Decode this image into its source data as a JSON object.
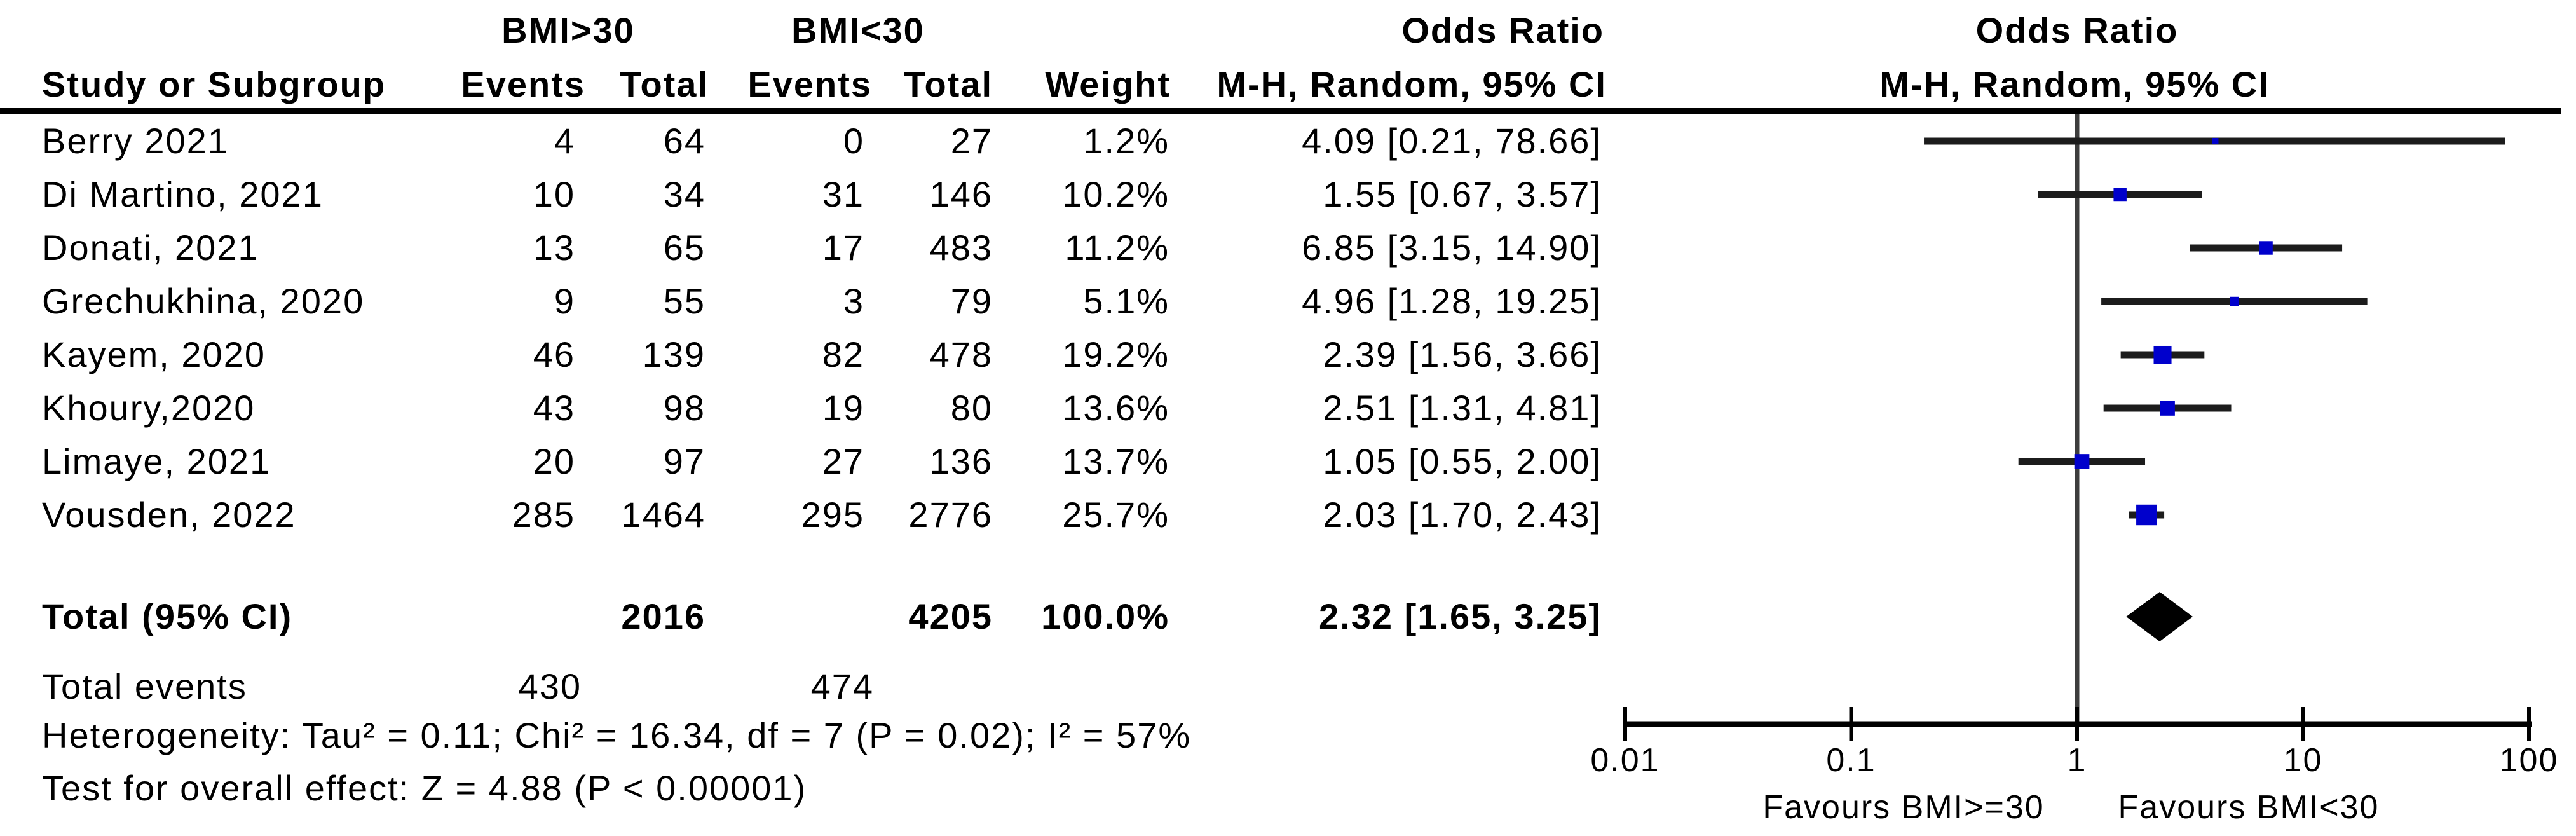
{
  "header": {
    "group1": "BMI>30",
    "group2": "BMI<30",
    "study_col": "Study or Subgroup",
    "events_col_1": "Events",
    "total_col_1": "Total",
    "events_col_2": "Events",
    "total_col_2": "Total",
    "weight_col": "Weight",
    "or_col_title": "Odds Ratio",
    "or_col_sub": "M-H, Random, 95% CI",
    "plot_title": "Odds Ratio",
    "plot_sub": "M-H, Random, 95% CI"
  },
  "chart_data": {
    "type": "forest",
    "effect_measure": "Odds Ratio",
    "method": "M-H, Random, 95% CI",
    "x_scale": "log",
    "axis_range": [
      0.01,
      100
    ],
    "axis_ticks": [
      0.01,
      0.1,
      1,
      10,
      100
    ],
    "favours_left": "Favours BMI>=30",
    "favours_right": "Favours BMI<30",
    "marker_color": "#0000CC",
    "diamond_color": "#000000",
    "studies": [
      {
        "name": "Berry 2021",
        "events1": 4,
        "total1": 64,
        "events2": 0,
        "total2": 27,
        "weight": "1.2%",
        "weight_value": 1.2,
        "or": 4.09,
        "ci_low": 0.21,
        "ci_high": 78.66,
        "or_ci_text": "4.09 [0.21, 78.66]"
      },
      {
        "name": "Di Martino, 2021",
        "events1": 10,
        "total1": 34,
        "events2": 31,
        "total2": 146,
        "weight": "10.2%",
        "weight_value": 10.2,
        "or": 1.55,
        "ci_low": 0.67,
        "ci_high": 3.57,
        "or_ci_text": "1.55 [0.67, 3.57]"
      },
      {
        "name": "Donati, 2021",
        "events1": 13,
        "total1": 65,
        "events2": 17,
        "total2": 483,
        "weight": "11.2%",
        "weight_value": 11.2,
        "or": 6.85,
        "ci_low": 3.15,
        "ci_high": 14.9,
        "or_ci_text": "6.85 [3.15, 14.90]"
      },
      {
        "name": "Grechukhina, 2020",
        "events1": 9,
        "total1": 55,
        "events2": 3,
        "total2": 79,
        "weight": "5.1%",
        "weight_value": 5.1,
        "or": 4.96,
        "ci_low": 1.28,
        "ci_high": 19.25,
        "or_ci_text": "4.96 [1.28, 19.25]"
      },
      {
        "name": "Kayem, 2020",
        "events1": 46,
        "total1": 139,
        "events2": 82,
        "total2": 478,
        "weight": "19.2%",
        "weight_value": 19.2,
        "or": 2.39,
        "ci_low": 1.56,
        "ci_high": 3.66,
        "or_ci_text": "2.39 [1.56, 3.66]"
      },
      {
        "name": "Khoury,2020",
        "events1": 43,
        "total1": 98,
        "events2": 19,
        "total2": 80,
        "weight": "13.6%",
        "weight_value": 13.6,
        "or": 2.51,
        "ci_low": 1.31,
        "ci_high": 4.81,
        "or_ci_text": "2.51 [1.31, 4.81]"
      },
      {
        "name": "Limaye, 2021",
        "events1": 20,
        "total1": 97,
        "events2": 27,
        "total2": 136,
        "weight": "13.7%",
        "weight_value": 13.7,
        "or": 1.05,
        "ci_low": 0.55,
        "ci_high": 2.0,
        "or_ci_text": "1.05 [0.55, 2.00]"
      },
      {
        "name": "Vousden, 2022",
        "events1": 285,
        "total1": 1464,
        "events2": 295,
        "total2": 2776,
        "weight": "25.7%",
        "weight_value": 25.7,
        "or": 2.03,
        "ci_low": 1.7,
        "ci_high": 2.43,
        "or_ci_text": "2.03 [1.70, 2.43]"
      }
    ],
    "total": {
      "label": "Total (95% CI)",
      "total1": 2016,
      "total2": 4205,
      "weight": "100.0%",
      "or": 2.32,
      "ci_low": 1.65,
      "ci_high": 3.25,
      "or_ci_text": "2.32 [1.65, 3.25]"
    }
  },
  "footer": {
    "total_events_label": "Total events",
    "total_events_group1": "430",
    "total_events_group2": "474",
    "heterogeneity": "Heterogeneity: Tau² = 0.11; Chi² = 16.34, df = 7 (P = 0.02); I² = 57%",
    "overall_effect": "Test for overall effect: Z = 4.88 (P < 0.00001)"
  }
}
